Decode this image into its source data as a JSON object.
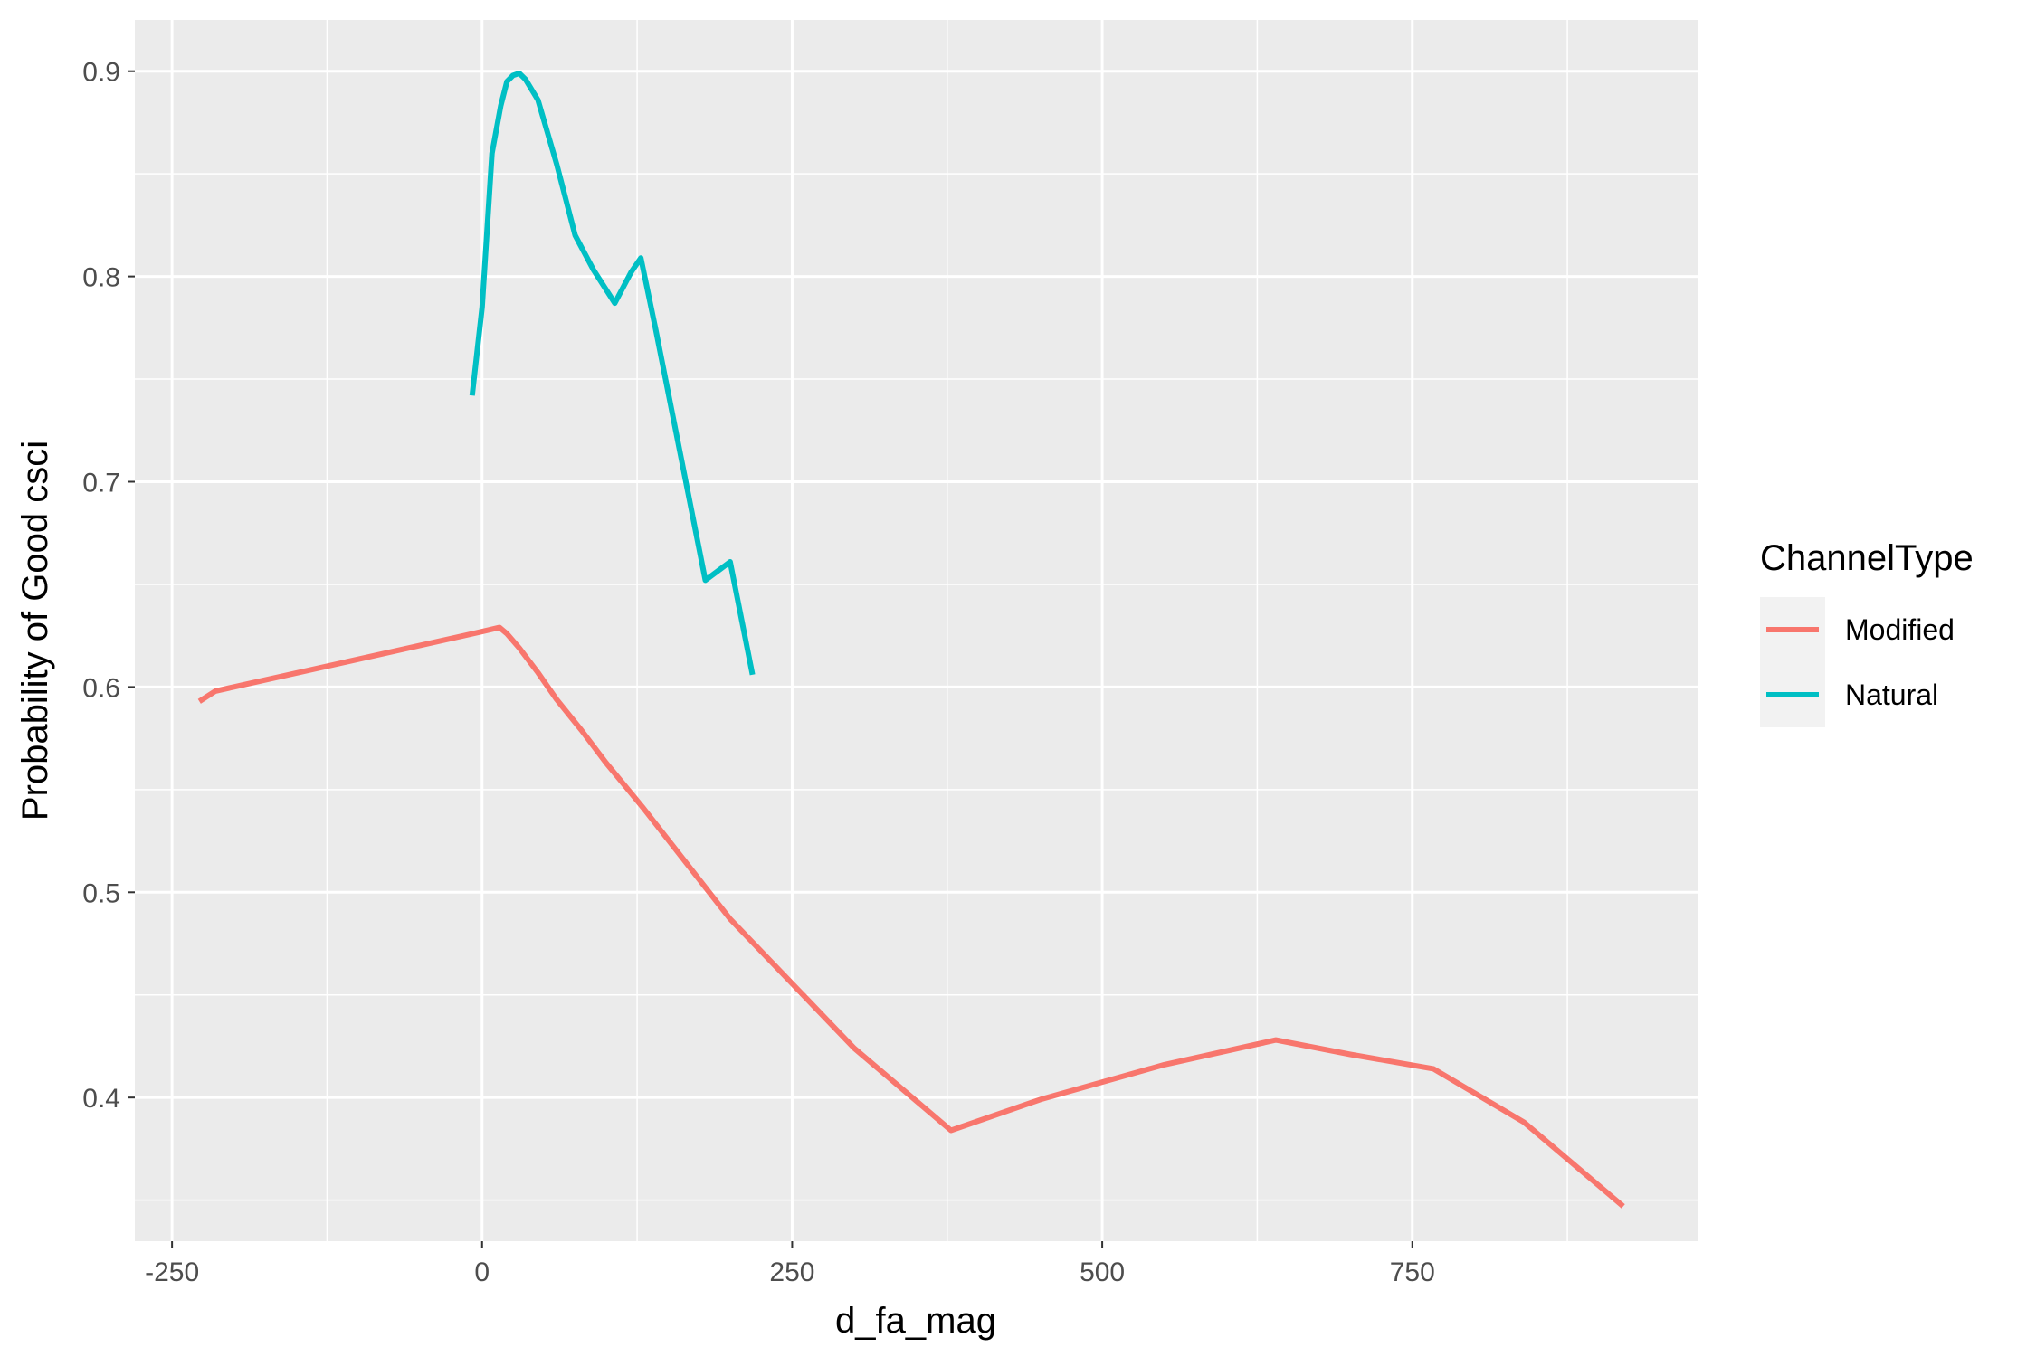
{
  "chart_data": {
    "type": "line",
    "title": "",
    "xlabel": "d_fa_mag",
    "ylabel": "Probability of Good csci",
    "xlim": [
      -280,
      980
    ],
    "ylim": [
      0.33,
      0.925
    ],
    "x_ticks": [
      -250,
      0,
      250,
      500,
      750
    ],
    "x_tick_labels": [
      "-250",
      "0",
      "250",
      "500",
      "750"
    ],
    "y_ticks": [
      0.4,
      0.5,
      0.6,
      0.7,
      0.8,
      0.9
    ],
    "y_tick_labels": [
      "0.4",
      "0.5",
      "0.6",
      "0.7",
      "0.8",
      "0.9"
    ],
    "grid": true,
    "legend": {
      "title": "ChannelType",
      "position": "right"
    },
    "series": [
      {
        "name": "Modified",
        "color": "#F8766D",
        "x": [
          -228,
          -215,
          0,
          14,
          20,
          30,
          45,
          60,
          80,
          100,
          130,
          200,
          300,
          378,
          450,
          550,
          640,
          700,
          767,
          840,
          920
        ],
        "y": [
          0.593,
          0.598,
          0.627,
          0.629,
          0.626,
          0.619,
          0.607,
          0.594,
          0.579,
          0.563,
          0.541,
          0.487,
          0.424,
          0.384,
          0.399,
          0.416,
          0.428,
          0.421,
          0.414,
          0.388,
          0.347
        ]
      },
      {
        "name": "Natural",
        "color": "#00BFC4",
        "x": [
          -8,
          0,
          8,
          15,
          20,
          25,
          30,
          35,
          45,
          60,
          75,
          90,
          107,
          120,
          128,
          140,
          160,
          180,
          200,
          218
        ],
        "y": [
          0.742,
          0.785,
          0.86,
          0.883,
          0.895,
          0.898,
          0.899,
          0.896,
          0.886,
          0.855,
          0.82,
          0.803,
          0.787,
          0.802,
          0.809,
          0.774,
          0.713,
          0.652,
          0.661,
          0.606
        ]
      }
    ]
  }
}
